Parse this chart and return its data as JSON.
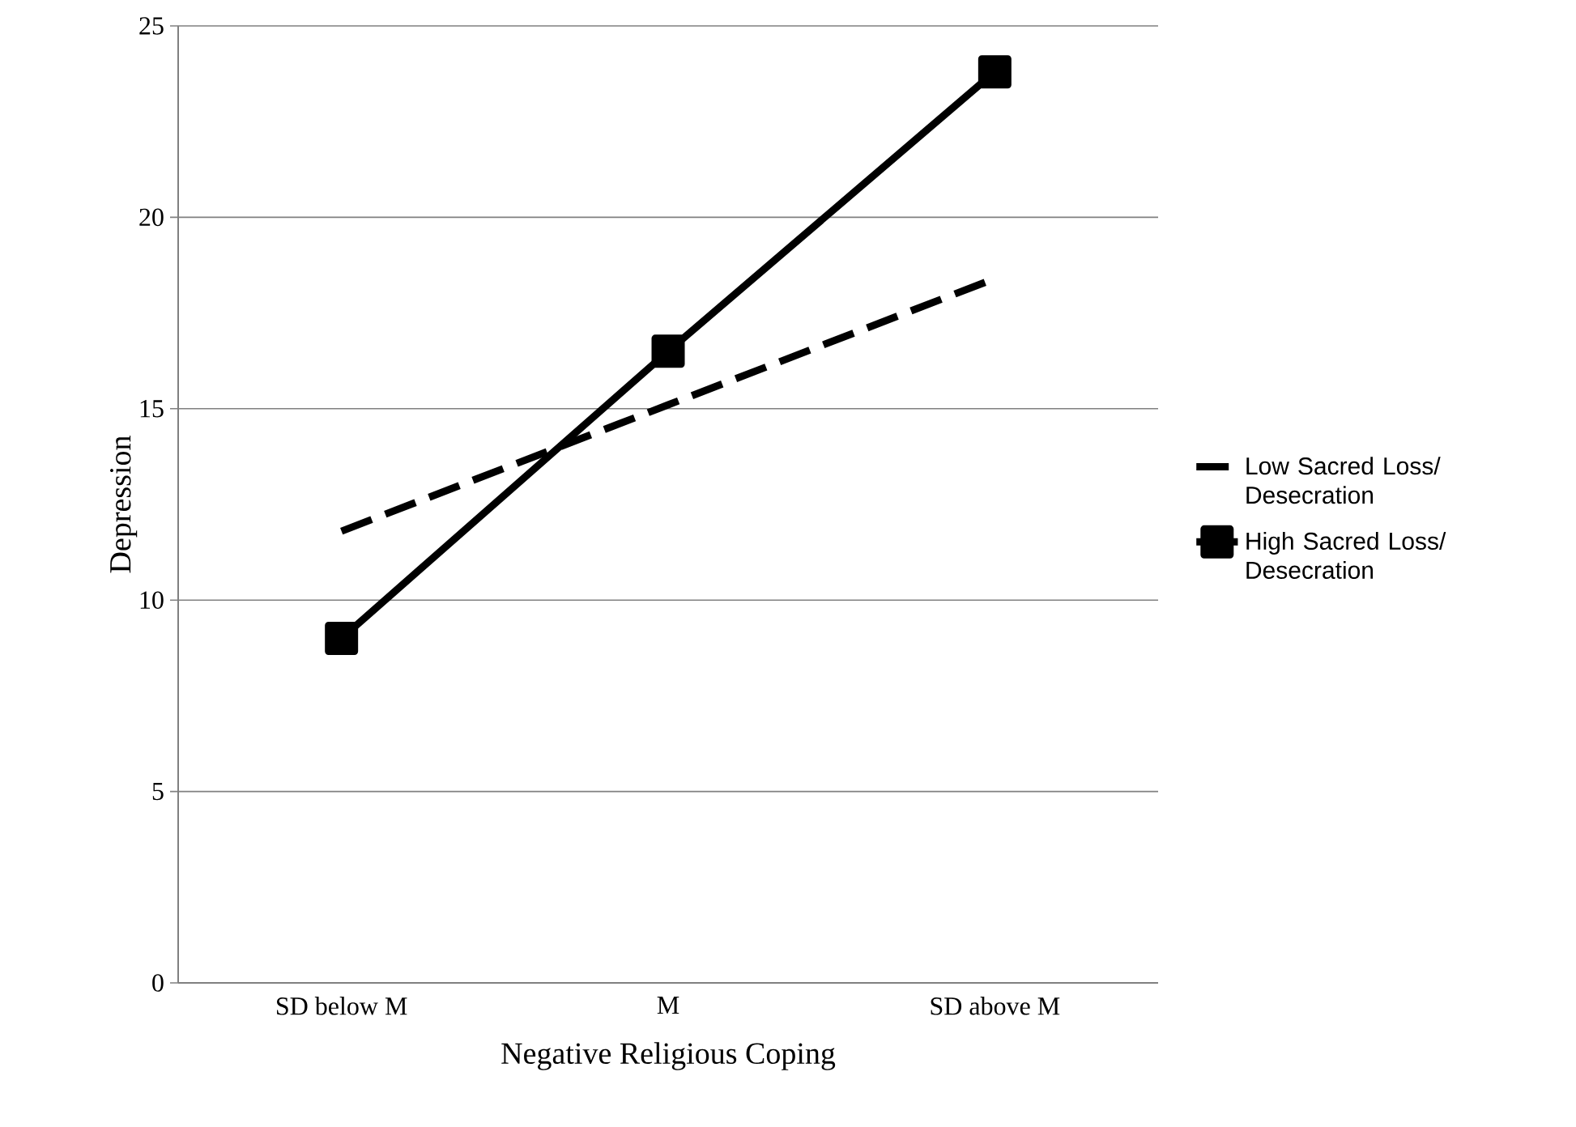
{
  "chart_data": {
    "type": "line",
    "xlabel": "Negative Religious Coping",
    "ylabel": "Depression",
    "categories": [
      "SD below M",
      "M",
      "SD above M"
    ],
    "series": [
      {
        "name": "Low Sacred Loss/ Desecration",
        "color": "#000000",
        "values": [
          11.8,
          15.1,
          18.4
        ],
        "line_style": "dashed",
        "marker": "none"
      },
      {
        "name": "High Sacred Loss/ Desecration",
        "color": "#000000",
        "values": [
          9.0,
          16.5,
          23.8
        ],
        "line_style": "solid",
        "marker": "square"
      }
    ],
    "ylim": [
      0,
      25
    ],
    "yticks": [
      0,
      5,
      10,
      15,
      20,
      25
    ],
    "grid": "y",
    "legend": "right"
  }
}
